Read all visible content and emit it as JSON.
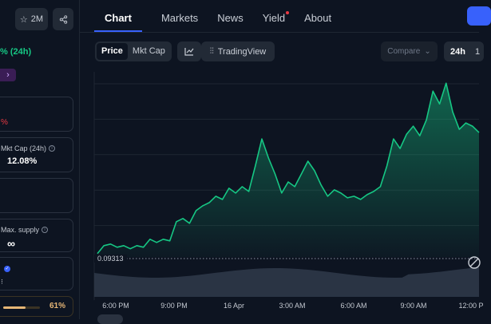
{
  "sidebar": {
    "watchlist_count": "2M",
    "price_change_frag": "% (24h)",
    "red_change_frag": "%",
    "vol_mktcap_label": "Mkt Cap (24h)",
    "vol_mktcap_value": "12.08%",
    "max_supply_label": "Max. supply",
    "max_supply_value": "∞",
    "dots_label": "⁝",
    "progress_label": "61%",
    "progress_value": 0.61
  },
  "tabs": [
    {
      "label": "Chart",
      "active": true
    },
    {
      "label": "Markets"
    },
    {
      "label": "News"
    },
    {
      "label": "Yield",
      "badge": true
    },
    {
      "label": "About"
    }
  ],
  "controls": {
    "price_label": "Price",
    "mktcap_label": "Mkt Cap",
    "tradingview_label": "TradingView",
    "compare_label": "Compare",
    "range_label": "24h"
  },
  "chart_data": {
    "type": "area",
    "start_price_label": "0.09313",
    "x_tick_labels": [
      "6:00 PM",
      "9:00 PM",
      "16 Apr",
      "3:00 AM",
      "6:00 AM",
      "9:00 AM",
      "12:00 P"
    ],
    "series": [
      {
        "values": [
          0.093,
          0.0935,
          0.0936,
          0.0934,
          0.0935,
          0.0933,
          0.0935,
          0.0934,
          0.0939,
          0.0937,
          0.0939,
          0.0938,
          0.095,
          0.0952,
          0.0949,
          0.0957,
          0.096,
          0.0962,
          0.0966,
          0.0964,
          0.0971,
          0.0968,
          0.0972,
          0.0969,
          0.0985,
          0.1002,
          0.099,
          0.098,
          0.0968,
          0.0975,
          0.0972,
          0.098,
          0.0988,
          0.0982,
          0.0973,
          0.0966,
          0.097,
          0.0968,
          0.0965,
          0.0966,
          0.0964,
          0.0967,
          0.0969,
          0.0972,
          0.0985,
          0.1002,
          0.0996,
          0.1005,
          0.101,
          0.1004,
          0.1014,
          0.1032,
          0.1024,
          0.1037,
          0.1019,
          0.1008,
          0.1012,
          0.101,
          0.1006
        ],
        "color": "#16c784"
      }
    ],
    "volume_color": "#2a3444",
    "grid": true
  }
}
